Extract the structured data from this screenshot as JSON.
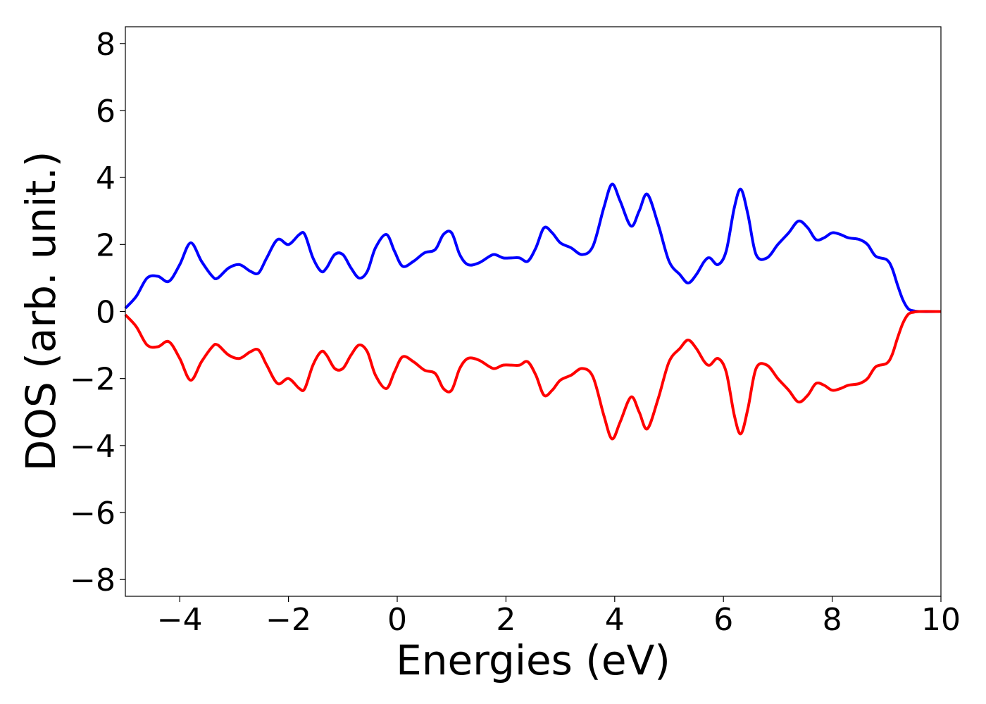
{
  "chart_data": {
    "type": "line",
    "title": "",
    "xlabel": "Energies (eV)",
    "ylabel": "DOS (arb. unit.)",
    "xlim": [
      -5,
      10
    ],
    "ylim": [
      -8.5,
      8.5
    ],
    "xticks": [
      -4,
      -2,
      0,
      2,
      4,
      6,
      8,
      10
    ],
    "yticks": [
      -8,
      -6,
      -4,
      -2,
      0,
      2,
      4,
      6,
      8
    ],
    "grid": false,
    "legend": "none",
    "series": [
      {
        "color": "#0000ff",
        "x": [
          -5.0,
          -4.8,
          -4.6,
          -4.4,
          -4.2,
          -4.0,
          -3.8,
          -3.6,
          -3.4,
          -3.3,
          -3.1,
          -2.9,
          -2.7,
          -2.55,
          -2.4,
          -2.2,
          -2.0,
          -1.8,
          -1.7,
          -1.55,
          -1.4,
          -1.3,
          -1.15,
          -1.0,
          -0.85,
          -0.7,
          -0.55,
          -0.4,
          -0.2,
          -0.05,
          0.1,
          0.3,
          0.5,
          0.7,
          0.85,
          1.0,
          1.15,
          1.3,
          1.5,
          1.7,
          1.8,
          1.95,
          2.1,
          2.25,
          2.4,
          2.55,
          2.7,
          2.85,
          3.0,
          3.2,
          3.4,
          3.6,
          3.8,
          3.95,
          4.1,
          4.3,
          4.45,
          4.6,
          4.8,
          5.0,
          5.2,
          5.35,
          5.5,
          5.65,
          5.75,
          5.9,
          6.05,
          6.2,
          6.32,
          6.45,
          6.6,
          6.8,
          7.0,
          7.2,
          7.38,
          7.55,
          7.7,
          7.85,
          8.0,
          8.15,
          8.3,
          8.5,
          8.65,
          8.8,
          9.0,
          9.1,
          9.2,
          9.3,
          9.4,
          9.5,
          9.6,
          10.0
        ],
        "y": [
          0.1,
          0.45,
          1.0,
          1.05,
          0.9,
          1.4,
          2.05,
          1.5,
          1.05,
          1.0,
          1.3,
          1.4,
          1.2,
          1.15,
          1.6,
          2.15,
          2.0,
          2.3,
          2.3,
          1.6,
          1.2,
          1.3,
          1.7,
          1.7,
          1.3,
          1.0,
          1.2,
          1.9,
          2.3,
          1.8,
          1.35,
          1.5,
          1.75,
          1.85,
          2.3,
          2.35,
          1.7,
          1.4,
          1.45,
          1.65,
          1.7,
          1.6,
          1.6,
          1.6,
          1.5,
          1.9,
          2.5,
          2.35,
          2.05,
          1.9,
          1.7,
          1.95,
          3.1,
          3.8,
          3.3,
          2.55,
          3.0,
          3.5,
          2.6,
          1.5,
          1.1,
          0.85,
          1.1,
          1.5,
          1.6,
          1.4,
          1.8,
          3.1,
          3.65,
          2.9,
          1.7,
          1.6,
          2.0,
          2.35,
          2.7,
          2.5,
          2.15,
          2.2,
          2.35,
          2.3,
          2.2,
          2.15,
          2.0,
          1.65,
          1.55,
          1.3,
          0.8,
          0.35,
          0.08,
          0.02,
          0.0,
          0.0
        ]
      },
      {
        "color": "#ff0000",
        "x": [
          -5.0,
          -4.8,
          -4.6,
          -4.4,
          -4.2,
          -4.0,
          -3.8,
          -3.6,
          -3.4,
          -3.3,
          -3.1,
          -2.9,
          -2.7,
          -2.55,
          -2.4,
          -2.2,
          -2.0,
          -1.8,
          -1.7,
          -1.55,
          -1.4,
          -1.3,
          -1.15,
          -1.0,
          -0.85,
          -0.7,
          -0.55,
          -0.4,
          -0.2,
          -0.05,
          0.1,
          0.3,
          0.5,
          0.7,
          0.85,
          1.0,
          1.15,
          1.3,
          1.5,
          1.7,
          1.8,
          1.95,
          2.1,
          2.25,
          2.4,
          2.55,
          2.7,
          2.85,
          3.0,
          3.2,
          3.4,
          3.6,
          3.8,
          3.95,
          4.1,
          4.3,
          4.45,
          4.6,
          4.8,
          5.0,
          5.2,
          5.35,
          5.5,
          5.65,
          5.75,
          5.9,
          6.05,
          6.2,
          6.32,
          6.45,
          6.6,
          6.8,
          7.0,
          7.2,
          7.38,
          7.55,
          7.7,
          7.85,
          8.0,
          8.15,
          8.3,
          8.5,
          8.65,
          8.8,
          9.0,
          9.1,
          9.2,
          9.3,
          9.4,
          9.5,
          9.6,
          10.0
        ],
        "y": [
          -0.1,
          -0.45,
          -1.0,
          -1.05,
          -0.9,
          -1.4,
          -2.05,
          -1.5,
          -1.05,
          -1.0,
          -1.3,
          -1.4,
          -1.2,
          -1.15,
          -1.6,
          -2.15,
          -2.0,
          -2.3,
          -2.3,
          -1.6,
          -1.2,
          -1.3,
          -1.7,
          -1.7,
          -1.3,
          -1.0,
          -1.2,
          -1.9,
          -2.3,
          -1.8,
          -1.35,
          -1.5,
          -1.75,
          -1.85,
          -2.3,
          -2.35,
          -1.7,
          -1.4,
          -1.45,
          -1.65,
          -1.7,
          -1.6,
          -1.6,
          -1.6,
          -1.5,
          -1.9,
          -2.5,
          -2.35,
          -2.05,
          -1.9,
          -1.7,
          -1.95,
          -3.1,
          -3.8,
          -3.3,
          -2.55,
          -3.0,
          -3.5,
          -2.6,
          -1.5,
          -1.1,
          -0.85,
          -1.1,
          -1.5,
          -1.6,
          -1.4,
          -1.8,
          -3.1,
          -3.65,
          -2.9,
          -1.7,
          -1.6,
          -2.0,
          -2.35,
          -2.7,
          -2.5,
          -2.15,
          -2.2,
          -2.35,
          -2.3,
          -2.2,
          -2.15,
          -2.0,
          -1.65,
          -1.55,
          -1.3,
          -0.8,
          -0.35,
          -0.08,
          -0.02,
          0.0,
          0.0
        ]
      }
    ]
  }
}
